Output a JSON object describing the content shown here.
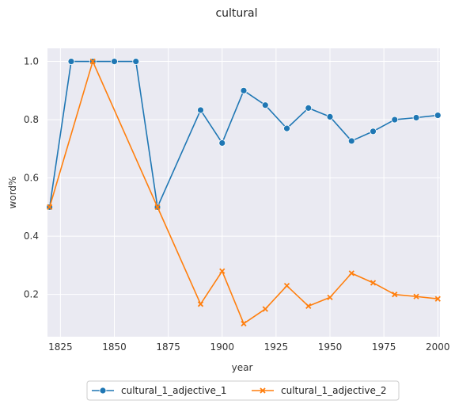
{
  "chart_data": {
    "type": "line",
    "title": "cultural",
    "xlabel": "year",
    "ylabel": "word%",
    "xlim": [
      1819,
      2001
    ],
    "ylim": [
      0.055,
      1.045
    ],
    "xticks": [
      1825,
      1850,
      1875,
      1900,
      1925,
      1950,
      1975,
      2000
    ],
    "yticks": [
      0.2,
      0.4,
      0.6,
      0.8,
      1.0
    ],
    "grid": true,
    "legend_position": "bottom-center",
    "series": [
      {
        "name": "cultural_1_adjective_1",
        "color": "#1f77b4",
        "marker": "circle",
        "x": [
          1820,
          1830,
          1840,
          1850,
          1860,
          1870,
          1890,
          1900,
          1910,
          1920,
          1930,
          1940,
          1950,
          1960,
          1970,
          1980,
          1990,
          2000
        ],
        "y": [
          0.5,
          1.0,
          1.0,
          1.0,
          1.0,
          0.5,
          0.833,
          0.72,
          0.9,
          0.85,
          0.77,
          0.84,
          0.81,
          0.727,
          0.76,
          0.8,
          0.807,
          0.815
        ]
      },
      {
        "name": "cultural_1_adjective_2",
        "color": "#ff7f0e",
        "marker": "x",
        "x": [
          1820,
          1840,
          1870,
          1890,
          1900,
          1910,
          1920,
          1930,
          1940,
          1950,
          1960,
          1970,
          1980,
          1990,
          2000
        ],
        "y": [
          0.5,
          1.0,
          0.5,
          0.167,
          0.28,
          0.1,
          0.15,
          0.23,
          0.16,
          0.19,
          0.273,
          0.24,
          0.2,
          0.193,
          0.185
        ]
      }
    ]
  }
}
